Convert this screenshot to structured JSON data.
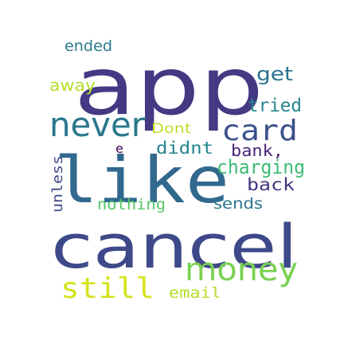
{
  "words": {
    "ended": "ended",
    "away": "away",
    "app": "app",
    "get": "get",
    "tried": "tried",
    "never": "never",
    "dont": "Dont",
    "card": "card",
    "e": "e",
    "didnt": "didnt",
    "bank": "bank,",
    "charging": "charging",
    "like": "like",
    "back": "back",
    "unless": "unless",
    "nothing": "nothing",
    "sends": "sends",
    "cancel": "cancel",
    "money": "money",
    "still": "still",
    "email": "email"
  },
  "colors": {
    "ended": "#2a7b8e",
    "away": "#b5de2b",
    "app": "#443983",
    "get": "#2c728e",
    "tried": "#24868e",
    "never": "#2a788e",
    "dont": "#bddf26",
    "card": "#3b528b",
    "e": "#440154",
    "didnt": "#25858e",
    "bank": "#482576",
    "charging": "#3dbc74",
    "like": "#31688e",
    "back": "#46337f",
    "unless": "#3e4a89",
    "nothing": "#56c667",
    "sends": "#2a768e",
    "cancel": "#3e4989",
    "money": "#7ad151",
    "still": "#d5e21a",
    "email": "#b5de2b"
  }
}
